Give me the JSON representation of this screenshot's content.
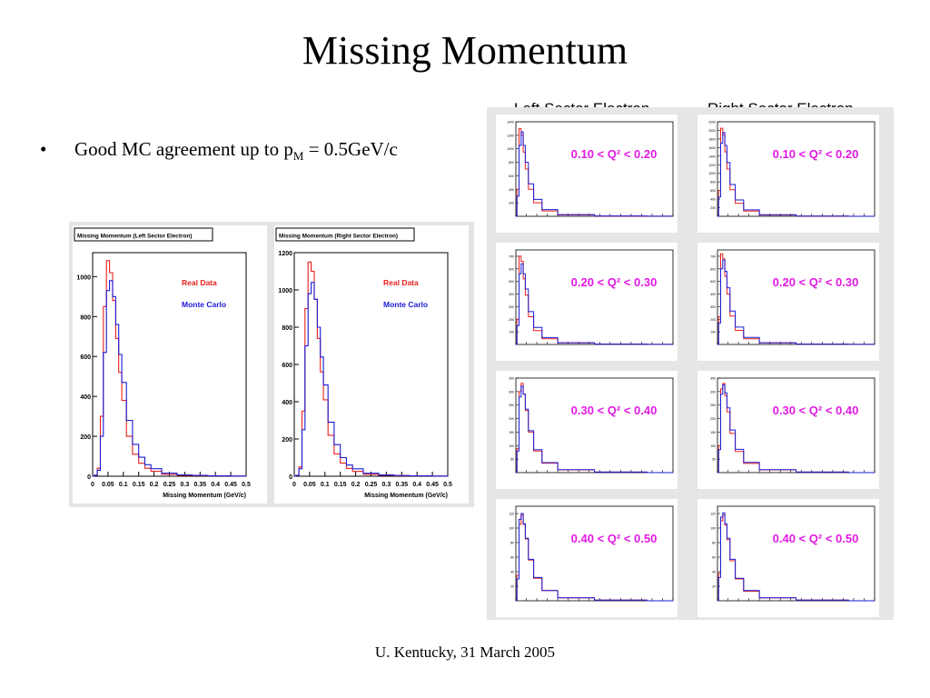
{
  "slide": {
    "title": "Missing Momentum",
    "bullet_pre": "Good MC agreement up to p",
    "bullet_sub": "M",
    "bullet_post": " = 0.5GeV/c",
    "footer": "U. Kentucky, 31 March 2005",
    "left_column_header": "Left Sector Electron",
    "right_column_header": "Right Sector Electron"
  },
  "colors": {
    "real": "#e8201c",
    "mc": "#1a1ad6",
    "label": "#e01ae0"
  },
  "chart_data": [
    {
      "type": "line",
      "title": "Missing Momentum (Left Sector Electron)",
      "xlabel": "Missing Momentum (GeV/c)",
      "ylabel": "",
      "xlim": [
        0,
        0.5
      ],
      "ylim": [
        0,
        1120
      ],
      "xticks": [
        "0",
        "0.05",
        "0.1",
        "0.15",
        "0.2",
        "0.25",
        "0.3",
        "0.35",
        "0.4",
        "0.45",
        "0.5"
      ],
      "yticks": [
        0,
        200,
        400,
        600,
        800,
        1000
      ],
      "x": [
        0,
        0.01,
        0.02,
        0.03,
        0.04,
        0.05,
        0.06,
        0.07,
        0.08,
        0.09,
        0.1,
        0.12,
        0.14,
        0.16,
        0.18,
        0.2,
        0.25,
        0.3,
        0.35,
        0.4,
        0.5
      ],
      "series": [
        {
          "name": "Real Data",
          "values": [
            0,
            5,
            40,
            300,
            850,
            1080,
            1020,
            880,
            690,
            520,
            380,
            200,
            110,
            65,
            40,
            25,
            10,
            5,
            3,
            2,
            1
          ]
        },
        {
          "name": "Monte Carlo",
          "values": [
            0,
            5,
            30,
            200,
            620,
            930,
            980,
            900,
            760,
            610,
            470,
            280,
            160,
            95,
            58,
            38,
            15,
            7,
            4,
            2,
            1
          ]
        }
      ],
      "legend": "top-right"
    },
    {
      "type": "line",
      "title": "Missing Momentum (Right Sector Electron)",
      "xlabel": "Missing Momentum (GeV/c)",
      "ylabel": "",
      "xlim": [
        0,
        0.5
      ],
      "ylim": [
        0,
        1200
      ],
      "xticks": [
        "0",
        "0.05",
        "0.1",
        "0.15",
        "0.2",
        "0.25",
        "0.3",
        "0.35",
        "0.4",
        "0.45",
        "0.5"
      ],
      "yticks": [
        0,
        200,
        400,
        600,
        800,
        1000,
        1200
      ],
      "x": [
        0,
        0.01,
        0.02,
        0.03,
        0.04,
        0.05,
        0.06,
        0.07,
        0.08,
        0.09,
        0.1,
        0.12,
        0.14,
        0.16,
        0.18,
        0.2,
        0.25,
        0.3,
        0.35,
        0.4,
        0.5
      ],
      "series": [
        {
          "name": "Real Data",
          "values": [
            0,
            5,
            50,
            350,
            900,
            1150,
            1100,
            950,
            740,
            560,
            410,
            220,
            120,
            70,
            42,
            26,
            10,
            5,
            3,
            2,
            1
          ]
        },
        {
          "name": "Monte Carlo",
          "values": [
            0,
            5,
            40,
            250,
            700,
            980,
            1040,
            950,
            800,
            640,
            490,
            290,
            170,
            100,
            60,
            40,
            16,
            7,
            4,
            2,
            1
          ]
        }
      ],
      "legend": "top-right"
    },
    {
      "type": "line",
      "title": "Left Sector Electron",
      "label": "0.10 < Q² < 0.20",
      "ylim": [
        0,
        1400
      ],
      "yticks": [
        200,
        400,
        600,
        800,
        1000,
        1200,
        1400
      ],
      "x": [
        0,
        0.02,
        0.04,
        0.06,
        0.08,
        0.1,
        0.14,
        0.2,
        0.3,
        0.5,
        1.0,
        1.5
      ],
      "series": [
        {
          "name": "Real Data",
          "values": [
            0,
            400,
            1300,
            1200,
            950,
            700,
            400,
            200,
            80,
            20,
            4,
            1
          ]
        },
        {
          "name": "Monte Carlo",
          "values": [
            0,
            300,
            1050,
            1250,
            1050,
            800,
            480,
            250,
            100,
            25,
            5,
            1
          ]
        }
      ]
    },
    {
      "type": "line",
      "title": "Right Sector Electron",
      "label": "0.10 < Q² < 0.20",
      "ylim": [
        0,
        2200
      ],
      "yticks": [
        200,
        400,
        600,
        800,
        1000,
        1200,
        1400,
        1600,
        1800,
        2000,
        2200
      ],
      "x": [
        0,
        0.02,
        0.04,
        0.06,
        0.08,
        0.1,
        0.14,
        0.2,
        0.3,
        0.5,
        1.0,
        1.5
      ],
      "series": [
        {
          "name": "Real Data",
          "values": [
            0,
            600,
            2050,
            1900,
            1500,
            1100,
            620,
            300,
            120,
            30,
            6,
            1
          ]
        },
        {
          "name": "Monte Carlo",
          "values": [
            0,
            450,
            1700,
            1950,
            1650,
            1250,
            740,
            380,
            150,
            35,
            7,
            1
          ]
        }
      ]
    },
    {
      "type": "line",
      "title": "Left Sector Electron",
      "label": "0.20 < Q² < 0.30",
      "ylim": [
        0,
        750
      ],
      "yticks": [
        100,
        200,
        300,
        400,
        500,
        600,
        700
      ],
      "x": [
        0,
        0.02,
        0.04,
        0.06,
        0.08,
        0.1,
        0.14,
        0.2,
        0.3,
        0.5,
        1.0,
        1.5
      ],
      "series": [
        {
          "name": "Real Data",
          "values": [
            0,
            200,
            700,
            660,
            520,
            390,
            220,
            110,
            45,
            12,
            3,
            1
          ]
        },
        {
          "name": "Monte Carlo",
          "values": [
            0,
            150,
            560,
            640,
            560,
            440,
            260,
            135,
            55,
            14,
            3,
            1
          ]
        }
      ]
    },
    {
      "type": "line",
      "title": "Right Sector Electron",
      "label": "0.20 < Q² < 0.30",
      "ylim": [
        0,
        750
      ],
      "yticks": [
        100,
        200,
        300,
        400,
        500,
        600,
        700
      ],
      "x": [
        0,
        0.02,
        0.04,
        0.06,
        0.08,
        0.1,
        0.14,
        0.2,
        0.3,
        0.5,
        1.0,
        1.5
      ],
      "series": [
        {
          "name": "Real Data",
          "values": [
            0,
            220,
            720,
            680,
            540,
            400,
            225,
            112,
            45,
            12,
            3,
            1
          ]
        },
        {
          "name": "Monte Carlo",
          "values": [
            0,
            170,
            600,
            670,
            580,
            450,
            265,
            138,
            56,
            14,
            3,
            1
          ]
        }
      ]
    },
    {
      "type": "line",
      "title": "Left Sector Electron",
      "label": "0.30 < Q² < 0.40",
      "ylim": [
        0,
        350
      ],
      "yticks": [
        50,
        100,
        150,
        200,
        250,
        300,
        350
      ],
      "x": [
        0,
        0.02,
        0.04,
        0.06,
        0.08,
        0.1,
        0.14,
        0.2,
        0.3,
        0.5,
        1.0,
        1.5
      ],
      "series": [
        {
          "name": "Real Data",
          "values": [
            0,
            90,
            300,
            330,
            290,
            230,
            150,
            80,
            35,
            10,
            2,
            0
          ]
        },
        {
          "name": "Monte Carlo",
          "values": [
            0,
            80,
            280,
            320,
            290,
            235,
            155,
            85,
            37,
            11,
            2,
            0
          ]
        }
      ]
    },
    {
      "type": "line",
      "title": "Right Sector Electron",
      "label": "0.30 < Q² < 0.40",
      "ylim": [
        0,
        350
      ],
      "yticks": [
        50,
        100,
        150,
        200,
        250,
        300,
        350
      ],
      "x": [
        0,
        0.02,
        0.04,
        0.06,
        0.08,
        0.1,
        0.14,
        0.2,
        0.3,
        0.5,
        1.0,
        1.5
      ],
      "series": [
        {
          "name": "Real Data",
          "values": [
            0,
            100,
            310,
            330,
            285,
            225,
            145,
            78,
            34,
            10,
            2,
            0
          ]
        },
        {
          "name": "Monte Carlo",
          "values": [
            0,
            85,
            290,
            325,
            295,
            240,
            158,
            86,
            38,
            11,
            2,
            0
          ]
        }
      ]
    },
    {
      "type": "line",
      "title": "Left Sector Electron",
      "label": "0.40 < Q² < 0.50",
      "ylim": [
        0,
        130
      ],
      "yticks": [
        20,
        40,
        60,
        80,
        100,
        120
      ],
      "x": [
        0,
        0.02,
        0.04,
        0.06,
        0.08,
        0.1,
        0.14,
        0.2,
        0.3,
        0.5,
        1.0,
        1.5
      ],
      "series": [
        {
          "name": "Real Data",
          "values": [
            0,
            35,
            105,
            118,
            105,
            85,
            56,
            31,
            14,
            4,
            1,
            0
          ]
        },
        {
          "name": "Monte Carlo",
          "values": [
            0,
            30,
            112,
            120,
            106,
            86,
            57,
            32,
            14,
            4,
            1,
            0
          ]
        }
      ]
    },
    {
      "type": "line",
      "title": "Right Sector Electron",
      "label": "0.40 < Q² < 0.50",
      "ylim": [
        0,
        130
      ],
      "yticks": [
        20,
        40,
        60,
        80,
        100,
        120
      ],
      "x": [
        0,
        0.02,
        0.04,
        0.06,
        0.08,
        0.1,
        0.14,
        0.2,
        0.3,
        0.5,
        1.0,
        1.5
      ],
      "series": [
        {
          "name": "Real Data",
          "values": [
            0,
            38,
            110,
            118,
            104,
            84,
            55,
            30,
            13,
            4,
            1,
            0
          ]
        },
        {
          "name": "Monte Carlo",
          "values": [
            0,
            32,
            115,
            121,
            106,
            86,
            57,
            31,
            14,
            4,
            1,
            0
          ]
        }
      ]
    }
  ]
}
